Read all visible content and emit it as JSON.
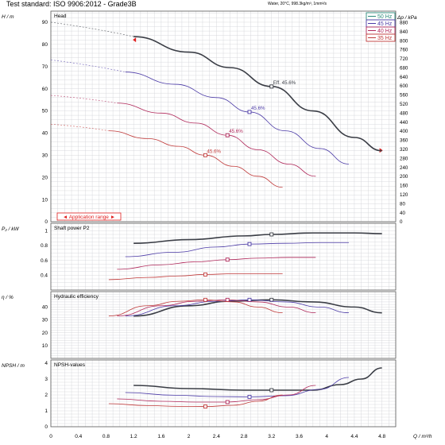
{
  "header": {
    "title": "Test standard: ISO 9906:2012 - Grade3B",
    "note": "Water, 20°C, 998.3kg/m³, 1mm²/s"
  },
  "colors": {
    "50hz": "#2a8a7a",
    "45hz": "#4b3aa6",
    "40hz": "#b0285a",
    "35hz": "#c03a3a",
    "main_curve": "#3a3d45",
    "grid": "#cfd0d6",
    "app_range": "#e02020"
  },
  "chart_data": {
    "type": "line",
    "x_axis": {
      "label": "Q / m³/h",
      "range": [
        0,
        5.0
      ],
      "ticks": [
        "0",
        "0.4",
        "0.8",
        "1.2",
        "1.6",
        "2",
        "2.4",
        "2.8",
        "3.2",
        "3.6",
        "4",
        "4.4",
        "4.8"
      ]
    },
    "legend": {
      "placement": "top-right",
      "entries": [
        "50 Hz",
        "45 Hz",
        "40 Hz",
        "35 Hz"
      ]
    },
    "panels": [
      {
        "title": "Head",
        "ylabel": "H / m",
        "ylim": [
          0,
          95
        ],
        "yticks": [
          "0",
          "10",
          "20",
          "30",
          "40",
          "50",
          "60",
          "70",
          "80",
          "90"
        ],
        "y2label": "Δp / kPa",
        "y2ticks": [
          "0",
          "40",
          "80",
          "120",
          "160",
          "200",
          "240",
          "280",
          "320",
          "360",
          "400",
          "440",
          "480",
          "520",
          "560",
          "600",
          "640",
          "680",
          "720",
          "760",
          "800",
          "840",
          "880"
        ],
        "application_range_label": "◄ Application range ►",
        "series": [
          {
            "name": "50 Hz",
            "color_key": "main_curve",
            "dashed_from": [
              0,
              90
            ],
            "x": [
              1.2,
              2,
              2.6,
              3.2,
              3.8,
              4.4,
              4.8
            ],
            "y": [
              83.5,
              76.5,
              69.5,
              61,
              50,
              38,
              32
            ],
            "op_point": [
              3.2,
              61
            ],
            "op_label": "Eff. 45.6%"
          },
          {
            "name": "45 Hz",
            "color_key": "45hz",
            "dashed_from": [
              0,
              73
            ],
            "x": [
              1.08,
              1.8,
              2.4,
              2.88,
              3.4,
              3.9,
              4.32
            ],
            "y": [
              67.5,
              62,
              56,
              49.5,
              41,
              33,
              26
            ],
            "op_point": [
              2.88,
              49.5
            ],
            "op_label": "45.6%"
          },
          {
            "name": "40 Hz",
            "color_key": "40hz",
            "dashed_from": [
              0,
              57
            ],
            "x": [
              0.96,
              1.6,
              2.1,
              2.56,
              3.0,
              3.45,
              3.84
            ],
            "y": [
              53.5,
              49,
              44.5,
              39,
              32.5,
              26,
              20.5
            ],
            "op_point": [
              2.56,
              39
            ],
            "op_label": "45.6%"
          },
          {
            "name": "35 Hz",
            "color_key": "35hz",
            "dashed_from": [
              0,
              44
            ],
            "x": [
              0.84,
              1.4,
              1.85,
              2.24,
              2.65,
              3.0,
              3.36
            ],
            "y": [
              41,
              37.5,
              34,
              30,
              25,
              20.5,
              15.5
            ],
            "op_point": [
              2.24,
              30
            ],
            "op_label": "45.6%"
          }
        ]
      },
      {
        "title": "Shaft power P2",
        "ylabel": "P₂ / kW",
        "ylim": [
          0.2,
          1.1
        ],
        "yticks": [
          "0.4",
          "0.6",
          "0.8",
          "1"
        ],
        "series": [
          {
            "name": "50 Hz",
            "color_key": "main_curve",
            "x": [
              1.2,
              2,
              2.8,
              3.2,
              3.8,
              4.4,
              4.8
            ],
            "y": [
              0.83,
              0.88,
              0.93,
              0.95,
              0.97,
              0.97,
              0.96
            ],
            "op_point": [
              3.2,
              0.95
            ]
          },
          {
            "name": "45 Hz",
            "color_key": "45hz",
            "x": [
              1.08,
              1.8,
              2.4,
              2.88,
              3.4,
              3.9,
              4.32
            ],
            "y": [
              0.65,
              0.71,
              0.78,
              0.82,
              0.83,
              0.84,
              0.84
            ],
            "op_point": [
              2.88,
              0.82
            ]
          },
          {
            "name": "40 Hz",
            "color_key": "40hz",
            "x": [
              0.96,
              1.6,
              2.1,
              2.56,
              3.0,
              3.45,
              3.84
            ],
            "y": [
              0.48,
              0.54,
              0.58,
              0.61,
              0.63,
              0.64,
              0.64
            ],
            "op_point": [
              2.56,
              0.61
            ]
          },
          {
            "name": "35 Hz",
            "color_key": "35hz",
            "x": [
              0.84,
              1.4,
              1.85,
              2.24,
              2.65,
              3.0,
              3.36
            ],
            "y": [
              0.34,
              0.37,
              0.39,
              0.41,
              0.42,
              0.42,
              0.42
            ],
            "op_point": [
              2.24,
              0.41
            ]
          }
        ]
      },
      {
        "title": "Hydraulic efficiency",
        "ylabel": "η / %",
        "ylim": [
          0,
          52
        ],
        "yticks": [
          "10",
          "20",
          "30",
          "40"
        ],
        "series": [
          {
            "name": "50 Hz",
            "color_key": "main_curve",
            "x": [
              1.2,
              2,
              2.6,
              3.2,
              3.8,
              4.4,
              4.8
            ],
            "y": [
              33,
              41,
              44.5,
              45.6,
              44,
              40,
              35.5
            ],
            "op_point": [
              3.2,
              45.6
            ]
          },
          {
            "name": "45 Hz",
            "color_key": "45hz",
            "x": [
              1.08,
              1.8,
              2.4,
              2.88,
              3.4,
              3.9,
              4.32
            ],
            "y": [
              33,
              41,
              44.5,
              45.6,
              44,
              40,
              35.5
            ],
            "op_point": [
              2.88,
              45.6
            ]
          },
          {
            "name": "40 Hz",
            "color_key": "40hz",
            "x": [
              0.96,
              1.6,
              2.1,
              2.56,
              3.0,
              3.45,
              3.84
            ],
            "y": [
              33,
              41,
              44.5,
              45.6,
              44,
              40,
              35.5
            ],
            "op_point": [
              2.56,
              45.6
            ]
          },
          {
            "name": "35 Hz",
            "color_key": "35hz",
            "x": [
              0.84,
              1.4,
              1.85,
              2.24,
              2.65,
              3.0,
              3.36
            ],
            "y": [
              33,
              41,
              44.5,
              45.6,
              44,
              40,
              35.5
            ],
            "op_point": [
              2.24,
              45.6
            ]
          }
        ]
      },
      {
        "title": "NPSH-values",
        "ylabel": "NPSH / m",
        "ylim": [
          0,
          4.2
        ],
        "yticks": [
          "0",
          "1",
          "2",
          "3",
          "4"
        ],
        "series": [
          {
            "name": "50 Hz",
            "color_key": "main_curve",
            "x": [
              1.2,
              2,
              2.8,
              3.2,
              3.8,
              4.2,
              4.5,
              4.8
            ],
            "y": [
              2.6,
              2.4,
              2.3,
              2.3,
              2.3,
              2.65,
              3.0,
              3.7
            ],
            "op_point": [
              3.2,
              2.3
            ]
          },
          {
            "name": "45 Hz",
            "color_key": "45hz",
            "x": [
              1.08,
              1.8,
              2.4,
              2.88,
              3.4,
              3.9,
              4.32
            ],
            "y": [
              2.15,
              1.98,
              1.9,
              1.88,
              1.95,
              2.35,
              3.1
            ],
            "op_point": [
              2.88,
              1.88
            ]
          },
          {
            "name": "40 Hz",
            "color_key": "40hz",
            "x": [
              0.96,
              1.6,
              2.1,
              2.56,
              3.0,
              3.45,
              3.84
            ],
            "y": [
              1.75,
              1.6,
              1.55,
              1.55,
              1.7,
              2.0,
              2.6
            ],
            "op_point": [
              2.56,
              1.55
            ]
          },
          {
            "name": "35 Hz",
            "color_key": "35hz",
            "x": [
              0.84,
              1.4,
              1.85,
              2.24,
              2.65,
              3.0,
              3.36
            ],
            "y": [
              1.45,
              1.33,
              1.28,
              1.27,
              1.35,
              1.6,
              2.0
            ],
            "op_point": [
              2.24,
              1.27
            ]
          }
        ]
      }
    ]
  }
}
